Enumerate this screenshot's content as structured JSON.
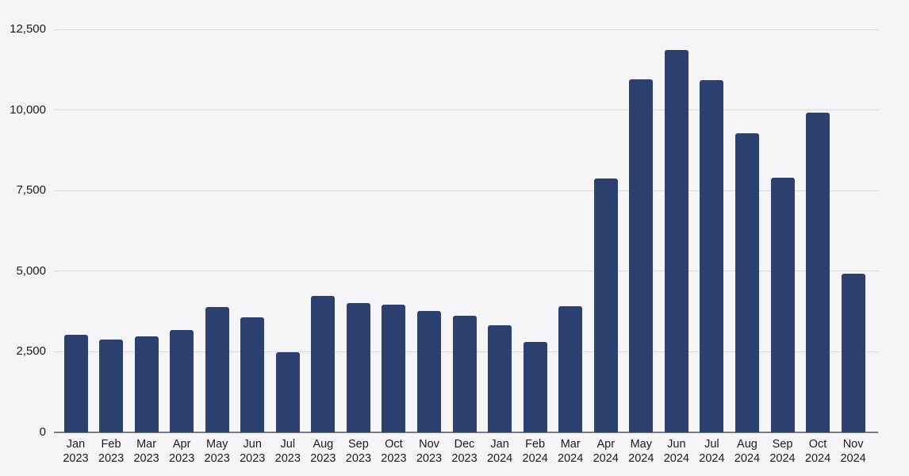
{
  "chart_data": {
    "type": "bar",
    "categories": [
      "Jan 2023",
      "Feb 2023",
      "Mar 2023",
      "Apr 2023",
      "May 2023",
      "Jun 2023",
      "Jul 2023",
      "Aug 2023",
      "Sep 2023",
      "Oct 2023",
      "Nov 2023",
      "Dec 2023",
      "Jan 2024",
      "Feb 2024",
      "Mar 2024",
      "Apr 2024",
      "May 2024",
      "Jun 2024",
      "Jul 2024",
      "Aug 2024",
      "Sep 2024",
      "Oct 2024",
      "Nov 2024"
    ],
    "values": [
      3030,
      2880,
      2980,
      3170,
      3880,
      3570,
      2490,
      4230,
      4010,
      3960,
      3770,
      3620,
      3320,
      2810,
      3910,
      7870,
      10950,
      11860,
      10920,
      9280,
      7900,
      9920,
      4930
    ],
    "ylim": [
      0,
      12500
    ],
    "y_ticks": [
      0,
      2500,
      5000,
      7500,
      10000,
      12500
    ],
    "y_tick_labels": [
      "0",
      "2,500",
      "5,000",
      "7,500",
      "10,000",
      "12,500"
    ],
    "grid": true,
    "legend": false,
    "legend_position": "none",
    "colors": {
      "bar": "#2d4170",
      "background": "#f5f5f7",
      "gridline": "#d9d9dc",
      "axis_line": "#7c7c80",
      "tick_text": "#1b1b1b"
    }
  }
}
